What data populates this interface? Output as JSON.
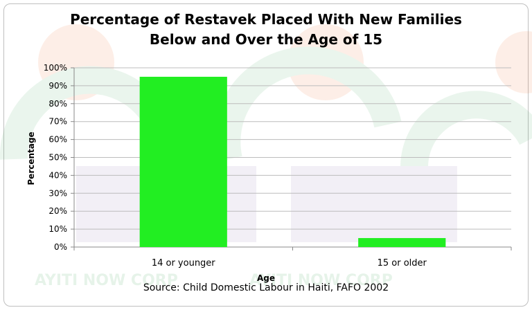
{
  "chart_data": {
    "type": "bar",
    "title_lines": [
      "Percentage of Restavek Placed With New Families",
      "Below and Over the Age of 15"
    ],
    "xlabel": "Age",
    "ylabel": "Percentage",
    "categories": [
      "14 or younger",
      "15 or older"
    ],
    "values": [
      95,
      5
    ],
    "ylim": [
      0,
      100
    ],
    "ytick_values": [
      0,
      10,
      20,
      30,
      40,
      50,
      60,
      70,
      80,
      90,
      100
    ],
    "ytick_labels": [
      "0%",
      "10%",
      "20%",
      "30%",
      "40%",
      "50%",
      "60%",
      "70%",
      "80%",
      "90%",
      "100%"
    ],
    "grid": true,
    "legend": "none",
    "bar_color": "#22ee22",
    "source": "Source: Child Domestic Labour in Haiti, FAFO 2002"
  },
  "watermark": {
    "text": "AYITI NOW CORP"
  }
}
